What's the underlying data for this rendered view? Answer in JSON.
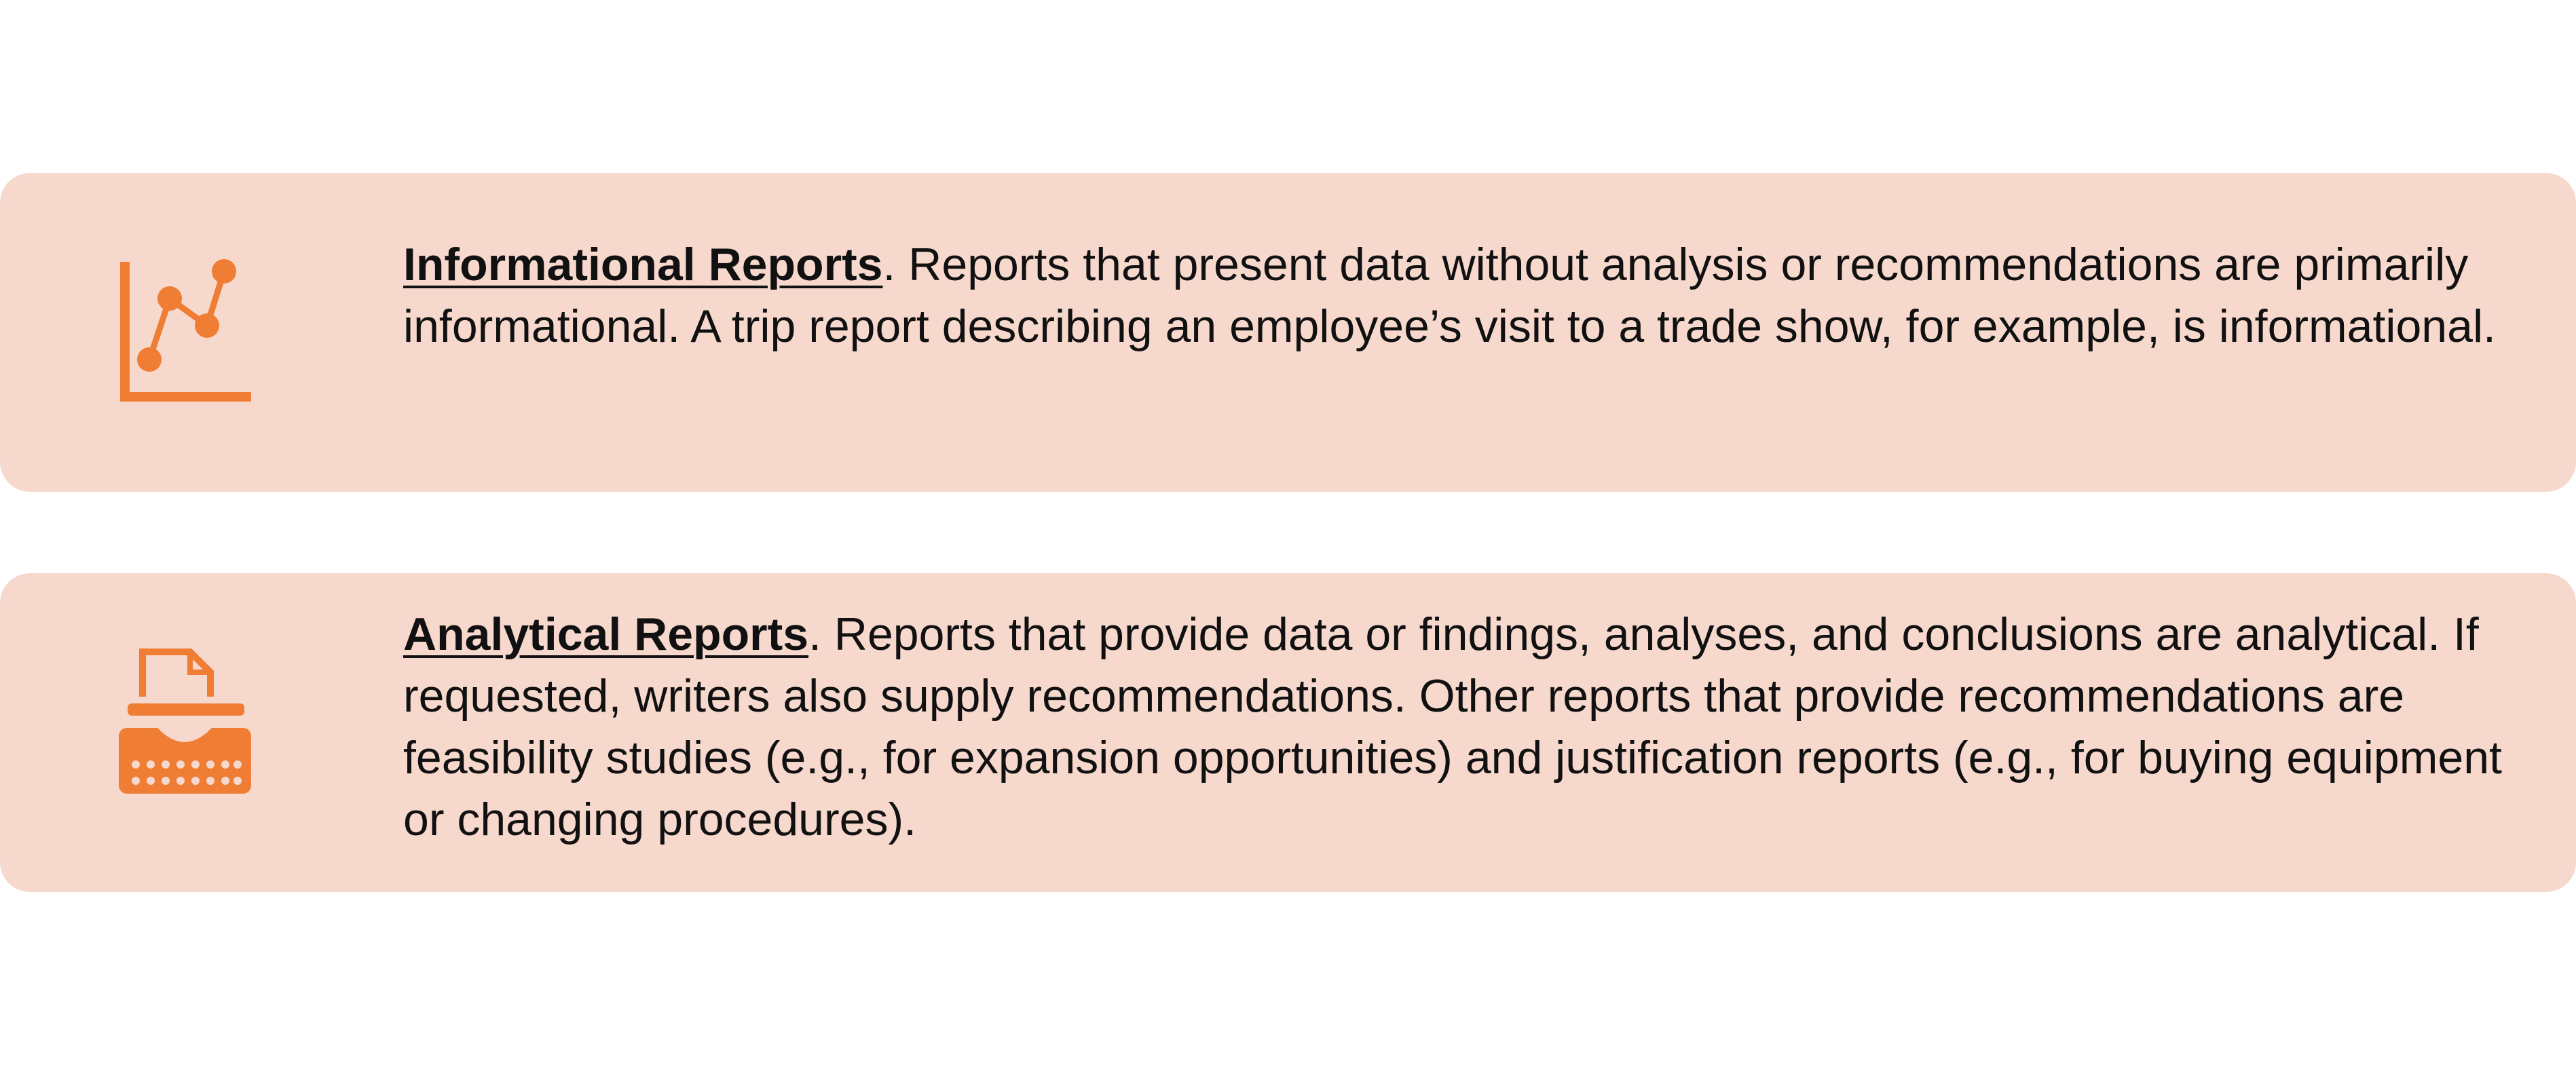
{
  "accent_color": "#ef7d33",
  "card_background": "#f7d8cd",
  "cards": [
    {
      "icon": "line-chart-icon",
      "term": "Informational Reports",
      "description": ". Reports that present data without analysis or recommendations are primarily informational. A trip report describing an employee’s visit to a trade show, for example, is informational."
    },
    {
      "icon": "typewriter-icon",
      "term": "Analytical Reports",
      "description": ". Reports that provide data or findings, analyses, and conclusions are analytical. If requested, writers also supply recommendations. Other reports that provide recommendations are feasibility studies (e.g., for expansion opportunities) and justification reports (e.g., for buying equipment or changing procedures)."
    }
  ]
}
